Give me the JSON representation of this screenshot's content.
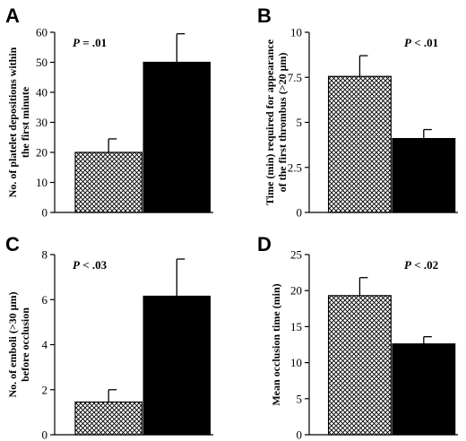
{
  "chart_data": [
    {
      "type": "bar",
      "panel": "A",
      "ylabel_lines": [
        "No. of platelet depositions within",
        "the first minute"
      ],
      "ylim": [
        0,
        60
      ],
      "ticks": [
        0,
        10,
        20,
        30,
        40,
        50,
        60
      ],
      "tick_labels": [
        "0",
        "10",
        "20",
        "30",
        "40",
        "50",
        "60"
      ],
      "pvalue": {
        "prefix": "P",
        "text": " = .01"
      },
      "pvalue_position": "top-left",
      "series": [
        {
          "fill": "hatched",
          "values": [
            20
          ],
          "error": [
            4.5
          ]
        },
        {
          "fill": "black",
          "values": [
            50
          ],
          "error": [
            9.5
          ]
        }
      ]
    },
    {
      "type": "bar",
      "panel": "B",
      "ylabel_lines": [
        "Time (min) required for appearance",
        "of the first thrombus (>20 μm)"
      ],
      "ylim": [
        0,
        10
      ],
      "ticks": [
        0,
        2.5,
        5,
        7.5,
        10
      ],
      "tick_labels": [
        "0",
        "2.5",
        "5",
        "7.5",
        "10"
      ],
      "pvalue": {
        "prefix": "P",
        "text": " < .01"
      },
      "pvalue_position": "top-right",
      "series": [
        {
          "fill": "hatched",
          "values": [
            7.55
          ],
          "error": [
            1.15
          ]
        },
        {
          "fill": "black",
          "values": [
            4.1
          ],
          "error": [
            0.5
          ]
        }
      ]
    },
    {
      "type": "bar",
      "panel": "C",
      "ylabel_lines": [
        "No. of emboli (>30 μm)",
        "before occlusion"
      ],
      "ylim": [
        0,
        8
      ],
      "ticks": [
        0,
        2,
        4,
        6,
        8
      ],
      "tick_labels": [
        "0",
        "2",
        "4",
        "6",
        "8"
      ],
      "pvalue": {
        "prefix": "P",
        "text": " < .03"
      },
      "pvalue_position": "top-left",
      "series": [
        {
          "fill": "hatched",
          "values": [
            1.45
          ],
          "error": [
            0.55
          ]
        },
        {
          "fill": "black",
          "values": [
            6.15
          ],
          "error": [
            1.65
          ]
        }
      ]
    },
    {
      "type": "bar",
      "panel": "D",
      "ylabel_lines": [
        "Mean occlusion time (min)"
      ],
      "ylim": [
        0,
        25
      ],
      "ticks": [
        0,
        5,
        10,
        15,
        20,
        25
      ],
      "tick_labels": [
        "0",
        "5",
        "10",
        "15",
        "20",
        "25"
      ],
      "pvalue": {
        "prefix": "P",
        "text": " < .02"
      },
      "pvalue_position": "top-right",
      "series": [
        {
          "fill": "hatched",
          "values": [
            19.3
          ],
          "error": [
            2.5
          ]
        },
        {
          "fill": "black",
          "values": [
            12.6
          ],
          "error": [
            1.0
          ]
        }
      ]
    }
  ]
}
